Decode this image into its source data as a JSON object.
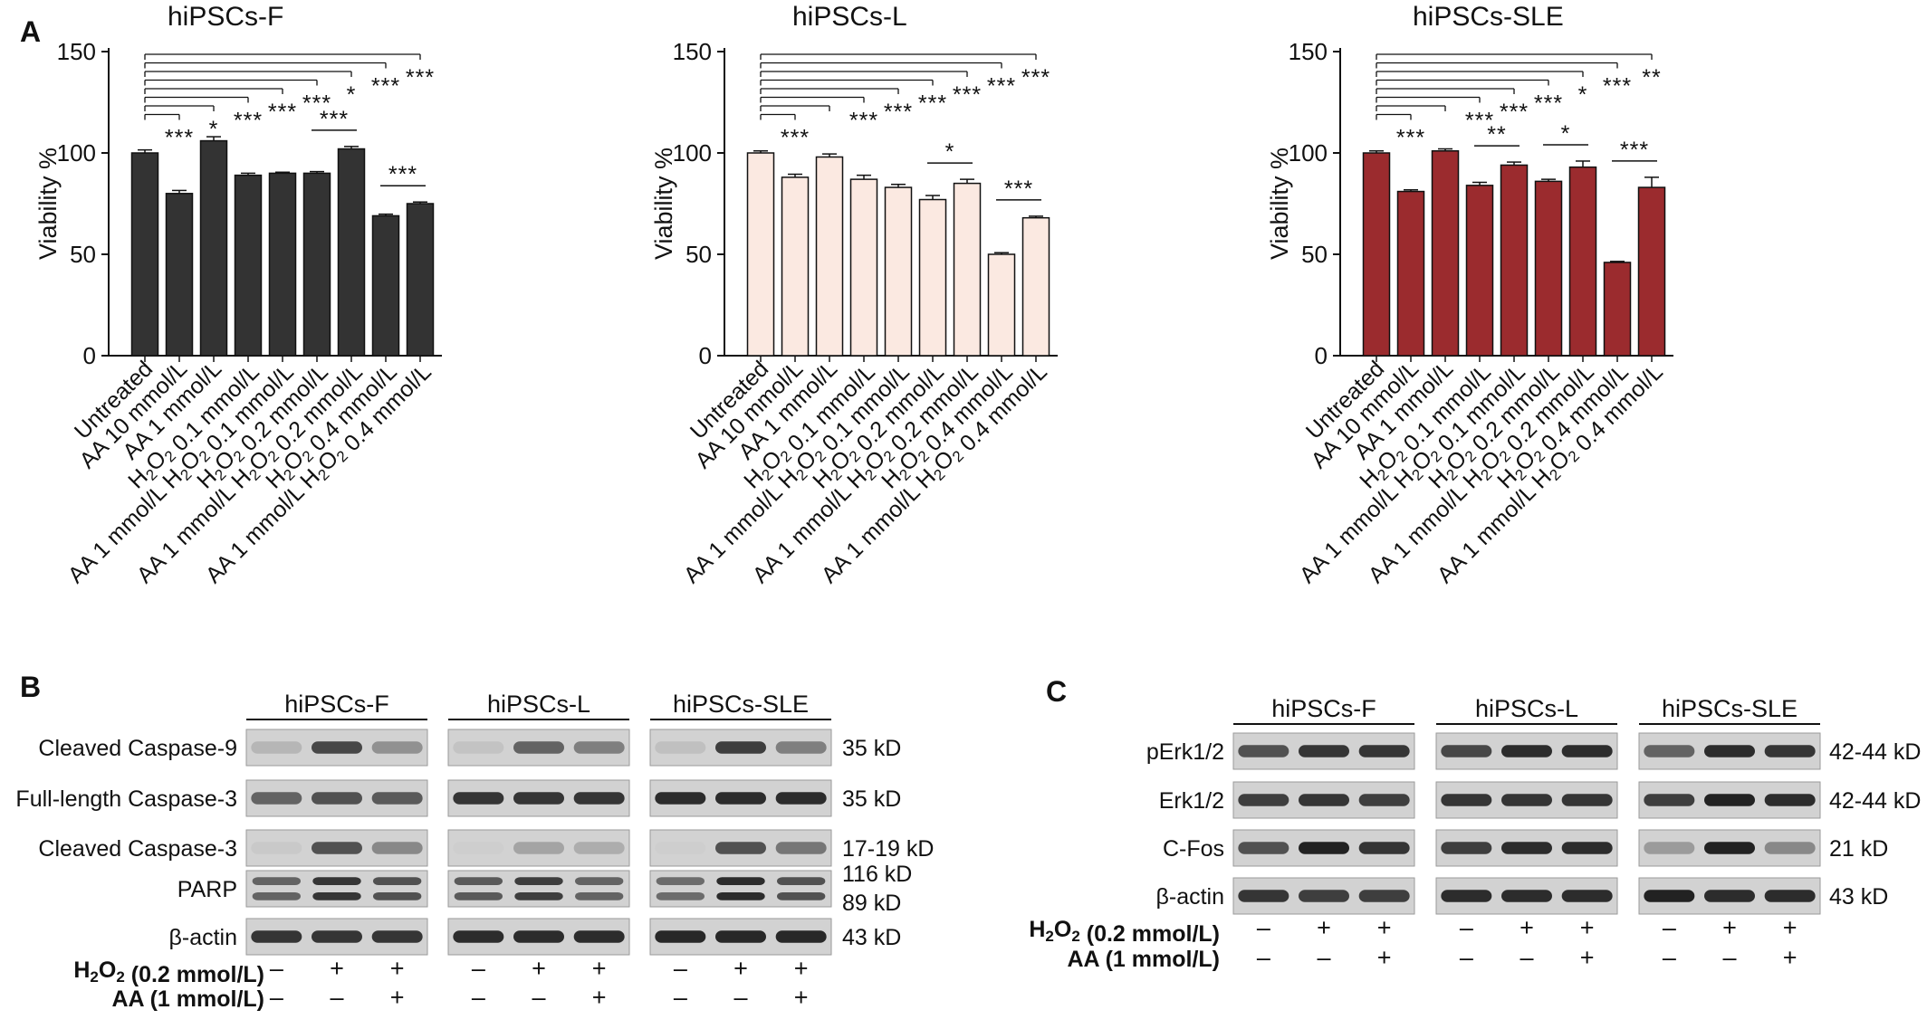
{
  "panel_labels": {
    "a": "A",
    "b": "B",
    "c": "C"
  },
  "chart_data": [
    {
      "type": "bar",
      "title": "hiPSCs-F",
      "xlabel": "",
      "ylabel": "Viability %",
      "ylim": [
        0,
        150
      ],
      "yticks": [
        0,
        50,
        100,
        150
      ],
      "categories": [
        "Untreated",
        "AA 10 mmol/L",
        "AA 1 mmol/L",
        "H2O2 0.1 mmol/L",
        "AA 1 mmol/L H2O2 0.1 mmol/L",
        "H2O2 0.2 mmol/L",
        "AA 1 mmol/L H2O2 0.2 mmol/L",
        "H2O2 0.4 mmol/L",
        "AA 1 mmol/L H2O2 0.4 mmol/L"
      ],
      "values": [
        100,
        80,
        106,
        89,
        90,
        90,
        102,
        69,
        75
      ],
      "errors": [
        1.5,
        1.5,
        2,
        1,
        0.5,
        0.8,
        1.2,
        0.8,
        0.8
      ],
      "bar_color": "#333333",
      "bar_stroke": "#111111",
      "vs_untreated_significance": [
        "***",
        "*",
        "***",
        "***",
        "***",
        "*",
        "***",
        "***"
      ],
      "pair_comparisons": [
        {
          "between": [
            5,
            6
          ],
          "label": "***"
        },
        {
          "between": [
            7,
            8
          ],
          "label": "***"
        }
      ]
    },
    {
      "type": "bar",
      "title": "hiPSCs-L",
      "xlabel": "",
      "ylabel": "Viability %",
      "ylim": [
        0,
        150
      ],
      "yticks": [
        0,
        50,
        100,
        150
      ],
      "categories": [
        "Untreated",
        "AA 10 mmol/L",
        "AA 1 mmol/L",
        "H2O2 0.1 mmol/L",
        "AA 1 mmol/L H2O2 0.1 mmol/L",
        "H2O2 0.2 mmol/L",
        "AA 1 mmol/L H2O2 0.2 mmol/L",
        "H2O2 0.4 mmol/L",
        "AA 1 mmol/L H2O2 0.4 mmol/L"
      ],
      "values": [
        100,
        88,
        98,
        87,
        83,
        77,
        85,
        50,
        68
      ],
      "errors": [
        1,
        1.5,
        1.5,
        2,
        1.5,
        2,
        2,
        0.8,
        0.8
      ],
      "bar_color": "#fbe9e1",
      "bar_stroke": "#111111",
      "vs_untreated_significance": [
        "***",
        "",
        "***",
        "***",
        "***",
        "***",
        "***",
        "***"
      ],
      "pair_comparisons": [
        {
          "between": [
            5,
            6
          ],
          "label": "*"
        },
        {
          "between": [
            7,
            8
          ],
          "label": "***"
        }
      ]
    },
    {
      "type": "bar",
      "title": "hiPSCs-SLE",
      "xlabel": "",
      "ylabel": "Viability %",
      "ylim": [
        0,
        150
      ],
      "yticks": [
        0,
        50,
        100,
        150
      ],
      "categories": [
        "Untreated",
        "AA 10 mmol/L",
        "AA 1 mmol/L",
        "H2O2 0.1 mmol/L",
        "AA 1 mmol/L H2O2 0.1 mmol/L",
        "H2O2 0.2 mmol/L",
        "AA 1 mmol/L H2O2 0.2 mmol/L",
        "H2O2 0.4 mmol/L",
        "AA 1 mmol/L H2O2 0.4 mmol/L"
      ],
      "values": [
        100,
        81,
        101,
        84,
        94,
        86,
        93,
        46,
        83
      ],
      "errors": [
        1,
        0.8,
        1,
        1.5,
        1.5,
        1,
        3,
        0.5,
        5
      ],
      "bar_color": "#9b2b2e",
      "bar_stroke": "#111111",
      "vs_untreated_significance": [
        "***",
        "",
        "***",
        "***",
        "***",
        "*",
        "***",
        "**"
      ],
      "pair_comparisons": [
        {
          "between": [
            3,
            4
          ],
          "label": "**"
        },
        {
          "between": [
            5,
            6
          ],
          "label": "*"
        },
        {
          "between": [
            7,
            8
          ],
          "label": "***"
        }
      ]
    }
  ],
  "western_b": {
    "groups": [
      "hiPSCs-F",
      "hiPSCs-L",
      "hiPSCs-SLE"
    ],
    "rows": [
      {
        "label": "Cleaved Caspase-9",
        "size": "35 kD",
        "intensities": [
          [
            0.15,
            0.75,
            0.35
          ],
          [
            0.08,
            0.6,
            0.45
          ],
          [
            0.1,
            0.8,
            0.45
          ]
        ]
      },
      {
        "label": "Full-length Caspase-3",
        "size": "35 kD",
        "intensities": [
          [
            0.6,
            0.7,
            0.65
          ],
          [
            0.85,
            0.85,
            0.85
          ],
          [
            0.9,
            0.9,
            0.9
          ]
        ]
      },
      {
        "label": "Cleaved Caspase-3",
        "size": "17-19 kD",
        "intensities": [
          [
            0.05,
            0.7,
            0.4
          ],
          [
            0.02,
            0.25,
            0.2
          ],
          [
            0.02,
            0.7,
            0.5
          ]
        ]
      },
      {
        "label": "PARP",
        "size": "116 kD",
        "size2": "89 kD",
        "intensities": [
          [
            0.6,
            0.85,
            0.7
          ],
          [
            0.65,
            0.8,
            0.6
          ],
          [
            0.55,
            0.9,
            0.7
          ]
        ]
      },
      {
        "label": "β-actin",
        "size": "43 kD",
        "intensities": [
          [
            0.85,
            0.85,
            0.85
          ],
          [
            0.9,
            0.9,
            0.9
          ],
          [
            0.92,
            0.92,
            0.92
          ]
        ]
      }
    ],
    "treatments": [
      {
        "label": "H2O2 (0.2 mmol/L)",
        "signs": [
          "–",
          "+",
          "+"
        ]
      },
      {
        "label": "AA (1 mmol/L)",
        "signs": [
          "–",
          "–",
          "+"
        ]
      }
    ]
  },
  "western_c": {
    "groups": [
      "hiPSCs-F",
      "hiPSCs-L",
      "hiPSCs-SLE"
    ],
    "rows": [
      {
        "label": "pErk1/2",
        "size": "42-44 kD",
        "intensities": [
          [
            0.7,
            0.85,
            0.85
          ],
          [
            0.75,
            0.9,
            0.9
          ],
          [
            0.6,
            0.9,
            0.85
          ]
        ]
      },
      {
        "label": "Erk1/2",
        "size": "42-44 kD",
        "intensities": [
          [
            0.8,
            0.85,
            0.8
          ],
          [
            0.85,
            0.85,
            0.85
          ],
          [
            0.8,
            0.95,
            0.9
          ]
        ]
      },
      {
        "label": "C-Fos",
        "size": "21 kD",
        "intensities": [
          [
            0.7,
            0.95,
            0.85
          ],
          [
            0.8,
            0.9,
            0.9
          ],
          [
            0.3,
            0.95,
            0.4
          ]
        ]
      },
      {
        "label": "β-actin",
        "size": "43 kD",
        "intensities": [
          [
            0.85,
            0.8,
            0.8
          ],
          [
            0.9,
            0.9,
            0.9
          ],
          [
            0.95,
            0.9,
            0.9
          ]
        ]
      }
    ],
    "treatments": [
      {
        "label": "H2O2 (0.2 mmol/L)",
        "signs": [
          "–",
          "+",
          "+"
        ]
      },
      {
        "label": "AA (1 mmol/L)",
        "signs": [
          "–",
          "–",
          "+"
        ]
      }
    ]
  }
}
